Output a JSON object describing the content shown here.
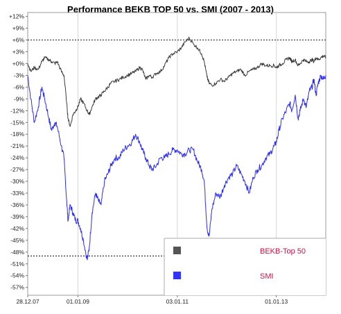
{
  "chart_data": {
    "type": "line",
    "title": "Performance BEKB TOP 50 vs. SMI (2007 - 2013)",
    "xlabel": "",
    "ylabel": "",
    "x_ticks": [
      "28.12.07",
      "01.01.09",
      "03.01.11",
      "01.01.13"
    ],
    "y_ticks": [
      "+12%",
      "+9%",
      "+6%",
      "+3%",
      "+0%",
      "-3%",
      "-6%",
      "-9%",
      "-12%",
      "-15%",
      "-18%",
      "-21%",
      "-24%",
      "-27%",
      "-30%",
      "-33%",
      "-36%",
      "-39%",
      "-42%",
      "-45%",
      "-48%",
      "-51%",
      "-54%",
      "-57%"
    ],
    "ylim": [
      -59,
      13
    ],
    "grid": "vertical",
    "reference_lines": [
      6,
      -49
    ],
    "x": [
      "2007-12-28",
      "2008-01-20",
      "2008-02-15",
      "2008-03-15",
      "2008-04-10",
      "2008-05-01",
      "2008-06-01",
      "2008-06-20",
      "2008-07-15",
      "2008-08-01",
      "2008-09-01",
      "2008-09-20",
      "2008-10-10",
      "2008-10-20",
      "2008-11-05",
      "2008-11-25",
      "2008-12-15",
      "2009-01-01",
      "2009-01-20",
      "2009-02-10",
      "2009-03-10",
      "2009-03-25",
      "2009-04-15",
      "2009-05-10",
      "2009-06-01",
      "2009-06-20",
      "2009-07-15",
      "2009-08-10",
      "2009-09-01",
      "2009-10-01",
      "2009-11-01",
      "2009-12-01",
      "2010-01-01",
      "2010-02-01",
      "2010-03-01",
      "2010-04-01",
      "2010-04-20",
      "2010-05-15",
      "2010-06-10",
      "2010-07-01",
      "2010-08-01",
      "2010-09-01",
      "2010-10-01",
      "2010-11-01",
      "2010-12-01",
      "2011-01-03",
      "2011-02-01",
      "2011-03-01",
      "2011-04-01",
      "2011-05-01",
      "2011-06-01",
      "2011-07-01",
      "2011-07-20",
      "2011-08-10",
      "2011-08-25",
      "2011-09-15",
      "2011-10-15",
      "2011-11-15",
      "2011-12-15",
      "2012-01-15",
      "2012-02-15",
      "2012-03-15",
      "2012-04-15",
      "2012-05-15",
      "2012-06-15",
      "2012-07-15",
      "2012-08-15",
      "2012-09-15",
      "2012-10-15",
      "2012-11-15",
      "2012-12-15",
      "2013-01-01",
      "2013-01-20",
      "2013-02-15",
      "2013-03-15",
      "2013-04-10",
      "2013-04-25",
      "2013-05-20",
      "2013-06-10",
      "2013-06-25",
      "2013-07-20",
      "2013-08-10",
      "2013-09-01",
      "2013-09-20",
      "2013-10-05",
      "2013-10-20",
      "2013-11-05",
      "2013-11-25",
      "2013-12-15",
      "2013-12-31"
    ],
    "series": [
      {
        "name": "BEKB-Top 50",
        "color": "#3a3a3a",
        "values": [
          0,
          -2,
          -1,
          -1.5,
          0.5,
          1.5,
          1,
          0.5,
          0,
          0.5,
          -2,
          -3,
          -10,
          -14,
          -16,
          -13,
          -12,
          -11,
          -9,
          -10,
          -12,
          -13,
          -11,
          -9,
          -8.5,
          -8,
          -7,
          -6,
          -5,
          -4.5,
          -4,
          -3.5,
          -3,
          -2.5,
          -2,
          -1,
          -1.5,
          -4,
          -3,
          -3.5,
          -2.5,
          -2,
          -0.5,
          1.5,
          2.5,
          3,
          4,
          5.5,
          6.5,
          5,
          4,
          2.5,
          0.5,
          -3.5,
          -5,
          -5.5,
          -5,
          -4,
          -4.5,
          -3.5,
          -2.5,
          -2,
          -1.5,
          -3,
          -2,
          -1.5,
          -1,
          0,
          -0.5,
          -0.5,
          -0.5,
          -1,
          -0.5,
          0,
          1,
          1.5,
          0.5,
          1,
          -0.5,
          0,
          1,
          0.5,
          0.5,
          1,
          0.5,
          1.5,
          1,
          1.5,
          2,
          1.5
        ]
      },
      {
        "name": "SMI",
        "color": "#2a2aff",
        "values": [
          -3,
          -9,
          -15,
          -11,
          -6,
          -9,
          -14,
          -17,
          -15,
          -16,
          -21,
          -24,
          -35,
          -40,
          -36,
          -38,
          -40,
          -40,
          -42,
          -45,
          -50,
          -47,
          -38,
          -33,
          -35,
          -36,
          -30,
          -28,
          -26,
          -24,
          -24,
          -22,
          -21,
          -20,
          -18,
          -20,
          -22,
          -24,
          -26,
          -27,
          -26,
          -24,
          -24,
          -23,
          -22,
          -22,
          -23,
          -23,
          -22,
          -22,
          -25,
          -27,
          -30,
          -42,
          -44,
          -37,
          -33,
          -34,
          -31,
          -29,
          -28,
          -26,
          -28,
          -30,
          -33,
          -29,
          -27,
          -26,
          -24,
          -23,
          -21,
          -20,
          -17,
          -14,
          -12,
          -10,
          -12,
          -8,
          -14,
          -12,
          -9,
          -11,
          -7,
          -6,
          -4,
          -8,
          -5,
          -3,
          -4,
          -3
        ]
      }
    ],
    "legend": {
      "position": "bottom-right",
      "entries": [
        {
          "label": "BEKB-Top 50",
          "swatch_color": "#555555",
          "text_color": "#cc1144"
        },
        {
          "label": "SMI",
          "swatch_color": "#3333ff",
          "text_color": "#cc1144"
        }
      ]
    }
  }
}
